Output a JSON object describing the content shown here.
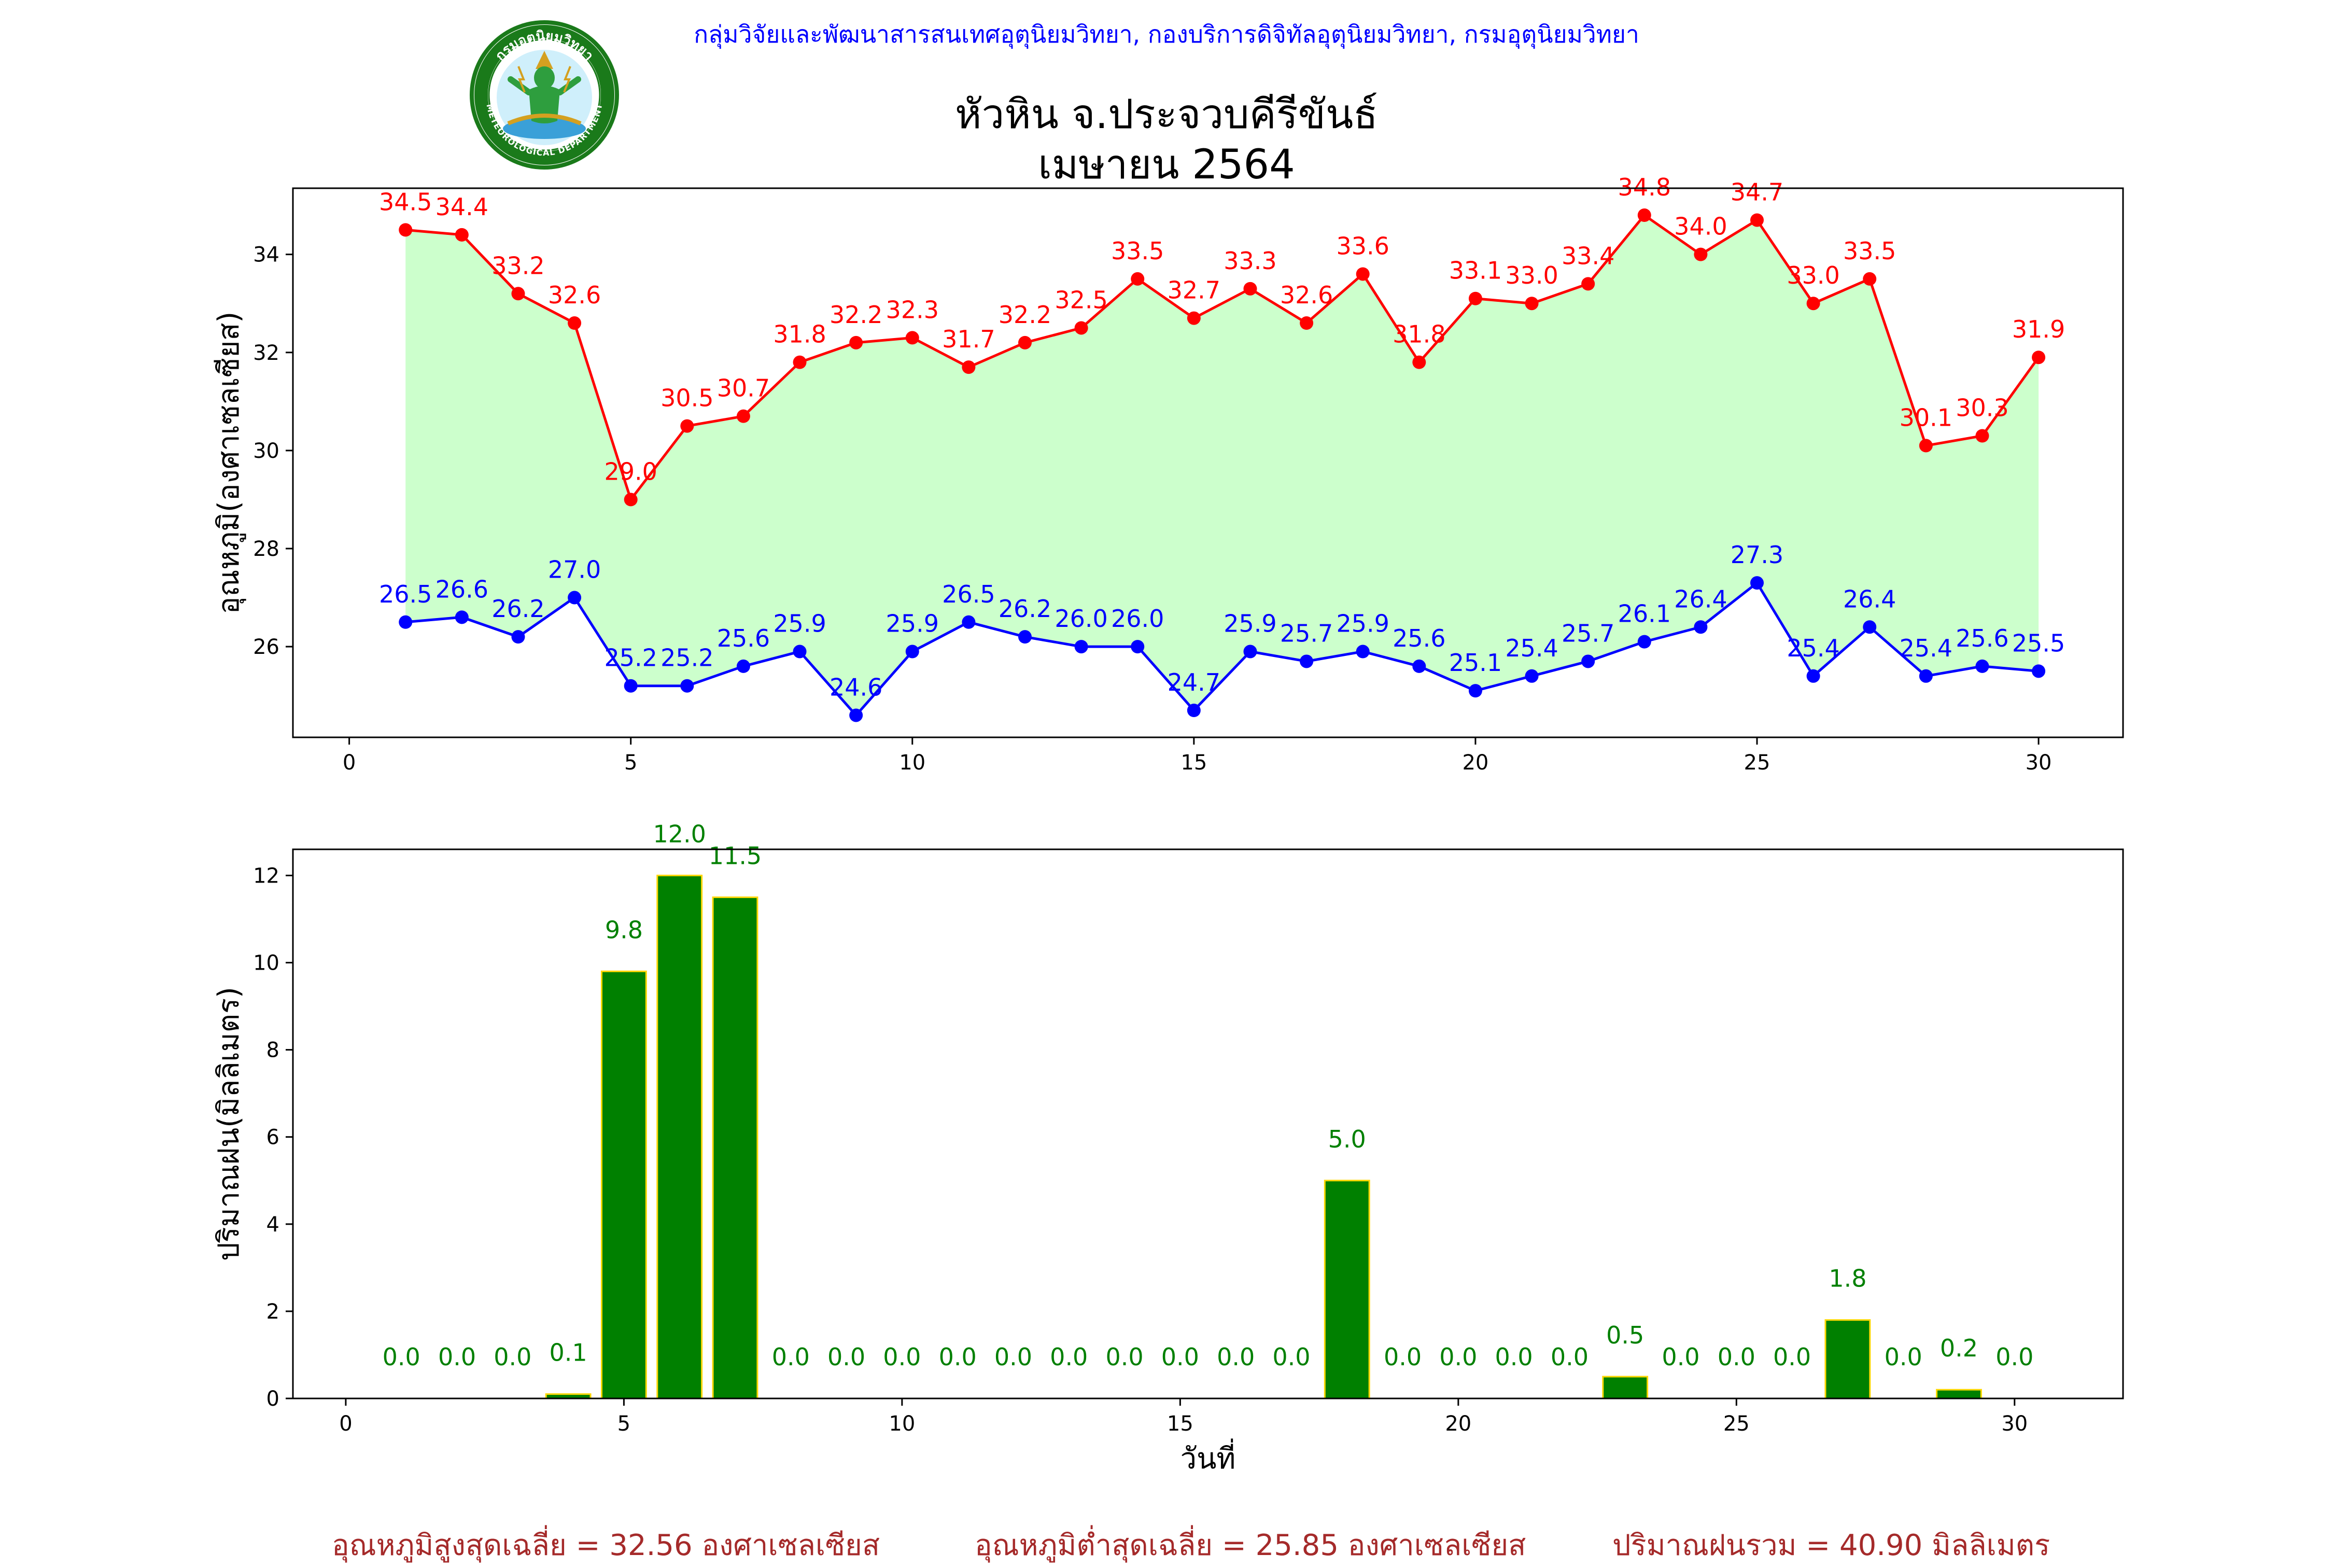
{
  "header": {
    "org": "กลุ่มวิจัยและพัฒนาสารสนเทศอุตุนิยมวิทยา, กองบริการดิจิทัลอุตุนิยมวิทยา, กรมอุตุนิยมวิทยา",
    "title_line1": "หัวหิน จ.ประจวบคีรีขันธ์",
    "title_line2": "เมษายน 2564",
    "logo_text": "กรมอุตุนิยมวิทยา",
    "logo_text_en": "METEOROLOGICAL DEPARTMENT"
  },
  "footer": {
    "avg_max": "อุณหภูมิสูงสุดเฉลี่ย = 32.56 องศาเซลเซียส",
    "avg_min": "อุณหภูมิต่ำสุดเฉลี่ย = 25.85 องศาเซลเซียส",
    "total_rain": "ปริมาณฝนรวม = 40.90 มิลลิเมตร"
  },
  "colors": {
    "max_line": "#ff0000",
    "min_line": "#0000ff",
    "fill": "#ccffcc",
    "bar_fill": "#008000",
    "bar_edge": "#ffd700",
    "bar_label": "#008000"
  },
  "chart_data": [
    {
      "type": "line",
      "ylabel": "อุณหภูมิ(องศาเซลเซียส)",
      "xlim": [
        -1,
        31.5
      ],
      "ylim": [
        24.15,
        35.35
      ],
      "xticks": [
        0,
        5,
        10,
        15,
        20,
        25,
        30
      ],
      "yticks": [
        26,
        28,
        30,
        32,
        34
      ],
      "grid": false,
      "x": [
        1,
        2,
        3,
        4,
        5,
        6,
        7,
        8,
        9,
        10,
        11,
        12,
        13,
        14,
        15,
        16,
        17,
        18,
        19,
        20,
        21,
        22,
        23,
        24,
        25,
        26,
        27,
        28,
        29,
        30
      ],
      "series": [
        {
          "name": "max",
          "values": [
            34.5,
            34.4,
            33.2,
            32.6,
            29.0,
            30.5,
            30.7,
            31.8,
            32.2,
            32.3,
            31.7,
            32.2,
            32.5,
            33.5,
            32.7,
            33.3,
            32.6,
            33.6,
            31.8,
            33.1,
            33.0,
            33.4,
            34.8,
            34.0,
            34.7,
            33.0,
            33.5,
            30.1,
            30.3,
            31.9
          ]
        },
        {
          "name": "min",
          "values": [
            26.5,
            26.6,
            26.2,
            27.0,
            25.2,
            25.2,
            25.6,
            25.9,
            24.6,
            25.9,
            26.5,
            26.2,
            26.0,
            26.0,
            24.7,
            25.9,
            25.7,
            25.9,
            25.6,
            25.1,
            25.4,
            25.7,
            26.1,
            26.4,
            27.3,
            25.4,
            26.4,
            25.4,
            25.6,
            25.5
          ]
        }
      ]
    },
    {
      "type": "bar",
      "xlabel": "วันที่",
      "ylabel": "ปริมาณฝน(มิลลิเมตร)",
      "xlim": [
        -0.95,
        31.95
      ],
      "ylim": [
        0,
        12.6
      ],
      "xticks": [
        0,
        5,
        10,
        15,
        20,
        25,
        30
      ],
      "yticks": [
        0,
        2,
        4,
        6,
        8,
        10,
        12
      ],
      "grid": false,
      "x": [
        1,
        2,
        3,
        4,
        5,
        6,
        7,
        8,
        9,
        10,
        11,
        12,
        13,
        14,
        15,
        16,
        17,
        18,
        19,
        20,
        21,
        22,
        23,
        24,
        25,
        26,
        27,
        28,
        29,
        30
      ],
      "values": [
        0.0,
        0.0,
        0.0,
        0.1,
        9.8,
        12.0,
        11.5,
        0.0,
        0.0,
        0.0,
        0.0,
        0.0,
        0.0,
        0.0,
        0.0,
        0.0,
        0.0,
        5.0,
        0.0,
        0.0,
        0.0,
        0.0,
        0.5,
        0.0,
        0.0,
        0.0,
        1.8,
        0.0,
        0.2,
        0.0
      ]
    }
  ]
}
